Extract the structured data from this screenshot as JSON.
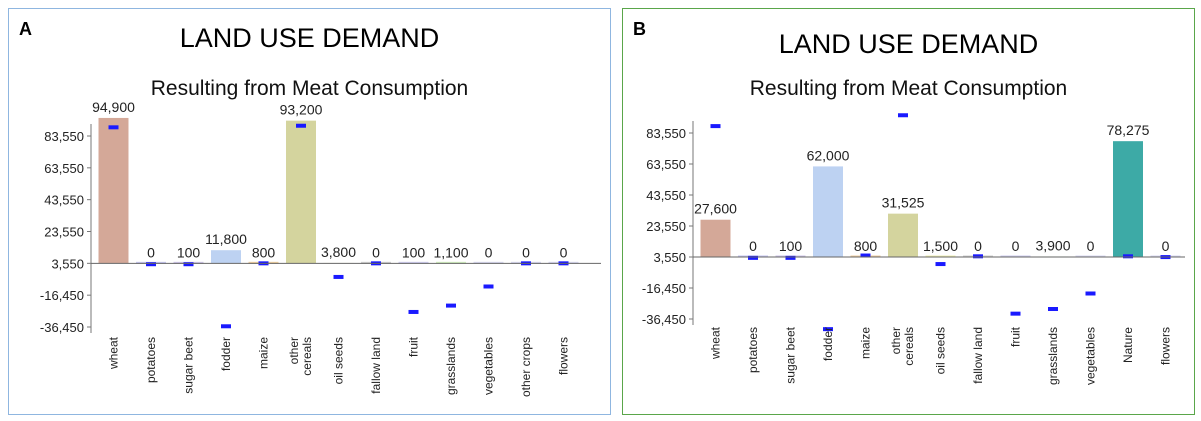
{
  "chart_data": [
    {
      "type": "bar",
      "panel_label": "A",
      "title": "LAND USE DEMAND",
      "subtitle": "Resulting from Meat Consumption",
      "categories": [
        "wheat",
        "potatoes",
        "sugar beet",
        "fodder",
        "maize",
        "other cereals",
        "oil seeds",
        "fallow land",
        "fruit",
        "grasslands",
        "vegetables",
        "other crops",
        "flowers"
      ],
      "values": [
        94900,
        0,
        100,
        11800,
        800,
        93200,
        3800,
        0,
        100,
        1100,
        0,
        0,
        0
      ],
      "data_labels": [
        "94,900",
        "0",
        "100",
        "11,800",
        "800",
        "93,200",
        "3,800",
        "0",
        "100",
        "1,100",
        "0",
        "0",
        "0"
      ],
      "markers": [
        89000,
        3000,
        3000,
        -36000,
        3550,
        90000,
        -5000,
        3550,
        -27000,
        -23000,
        -11000,
        3550,
        3550
      ],
      "bar_colors": [
        "#d4a898",
        "#c6c6f0",
        "#cfc6e8",
        "#bdd2f2",
        "#f0cfa0",
        "#d4d49e",
        "#f2f2b4",
        "#d0d0d0",
        "#cfcdef",
        "#d2f0c0",
        "#d8d8f0",
        "#d8d8f0",
        "#d8d8f0"
      ],
      "marker_color": "#1a1aff",
      "ytick_labels": [
        "83,550",
        "63,550",
        "43,550",
        "23,550",
        "3,550",
        "-16,450",
        "-36,450"
      ],
      "ylim": [
        -41000,
        100000
      ],
      "baseline": 3550,
      "grid": false,
      "border_color": "#8fb6e0"
    },
    {
      "type": "bar",
      "panel_label": "B",
      "title": "LAND USE DEMAND",
      "subtitle": "Resulting from Meat Consumption",
      "categories": [
        "wheat",
        "potatoes",
        "sugar beet",
        "fodder",
        "maize",
        "other cereals",
        "oil seeds",
        "fallow land",
        "fruit",
        "grasslands",
        "vegetables",
        "Nature",
        "flowers"
      ],
      "values": [
        27600,
        0,
        100,
        62000,
        800,
        31525,
        1500,
        0,
        0,
        3900,
        0,
        78275,
        0
      ],
      "data_labels": [
        "27,600",
        "0",
        "100",
        "62,000",
        "800",
        "31,525",
        "1,500",
        "0",
        "0",
        "3,900",
        "0",
        "78,275",
        "0"
      ],
      "markers": [
        88000,
        3000,
        3000,
        -43000,
        4500,
        95000,
        -1000,
        4000,
        -33000,
        -30000,
        -20000,
        4000,
        3500
      ],
      "bar_colors": [
        "#d4a898",
        "#c6c6f0",
        "#cfc6e8",
        "#bdd2f2",
        "#f0cfa0",
        "#d4d49e",
        "#f2f2b4",
        "#d0d0d0",
        "#cfcdef",
        "#d2f0c0",
        "#d8d8f0",
        "#3daaa6",
        "#d8d8f0"
      ],
      "marker_color": "#1a1aff",
      "ytick_labels": [
        "83,550",
        "63,550",
        "43,550",
        "23,550",
        "3,550",
        "-16,450",
        "-36,450"
      ],
      "ylim": [
        -41000,
        100000
      ],
      "baseline": 3550,
      "grid": false,
      "border_color": "#5aa64a"
    }
  ]
}
